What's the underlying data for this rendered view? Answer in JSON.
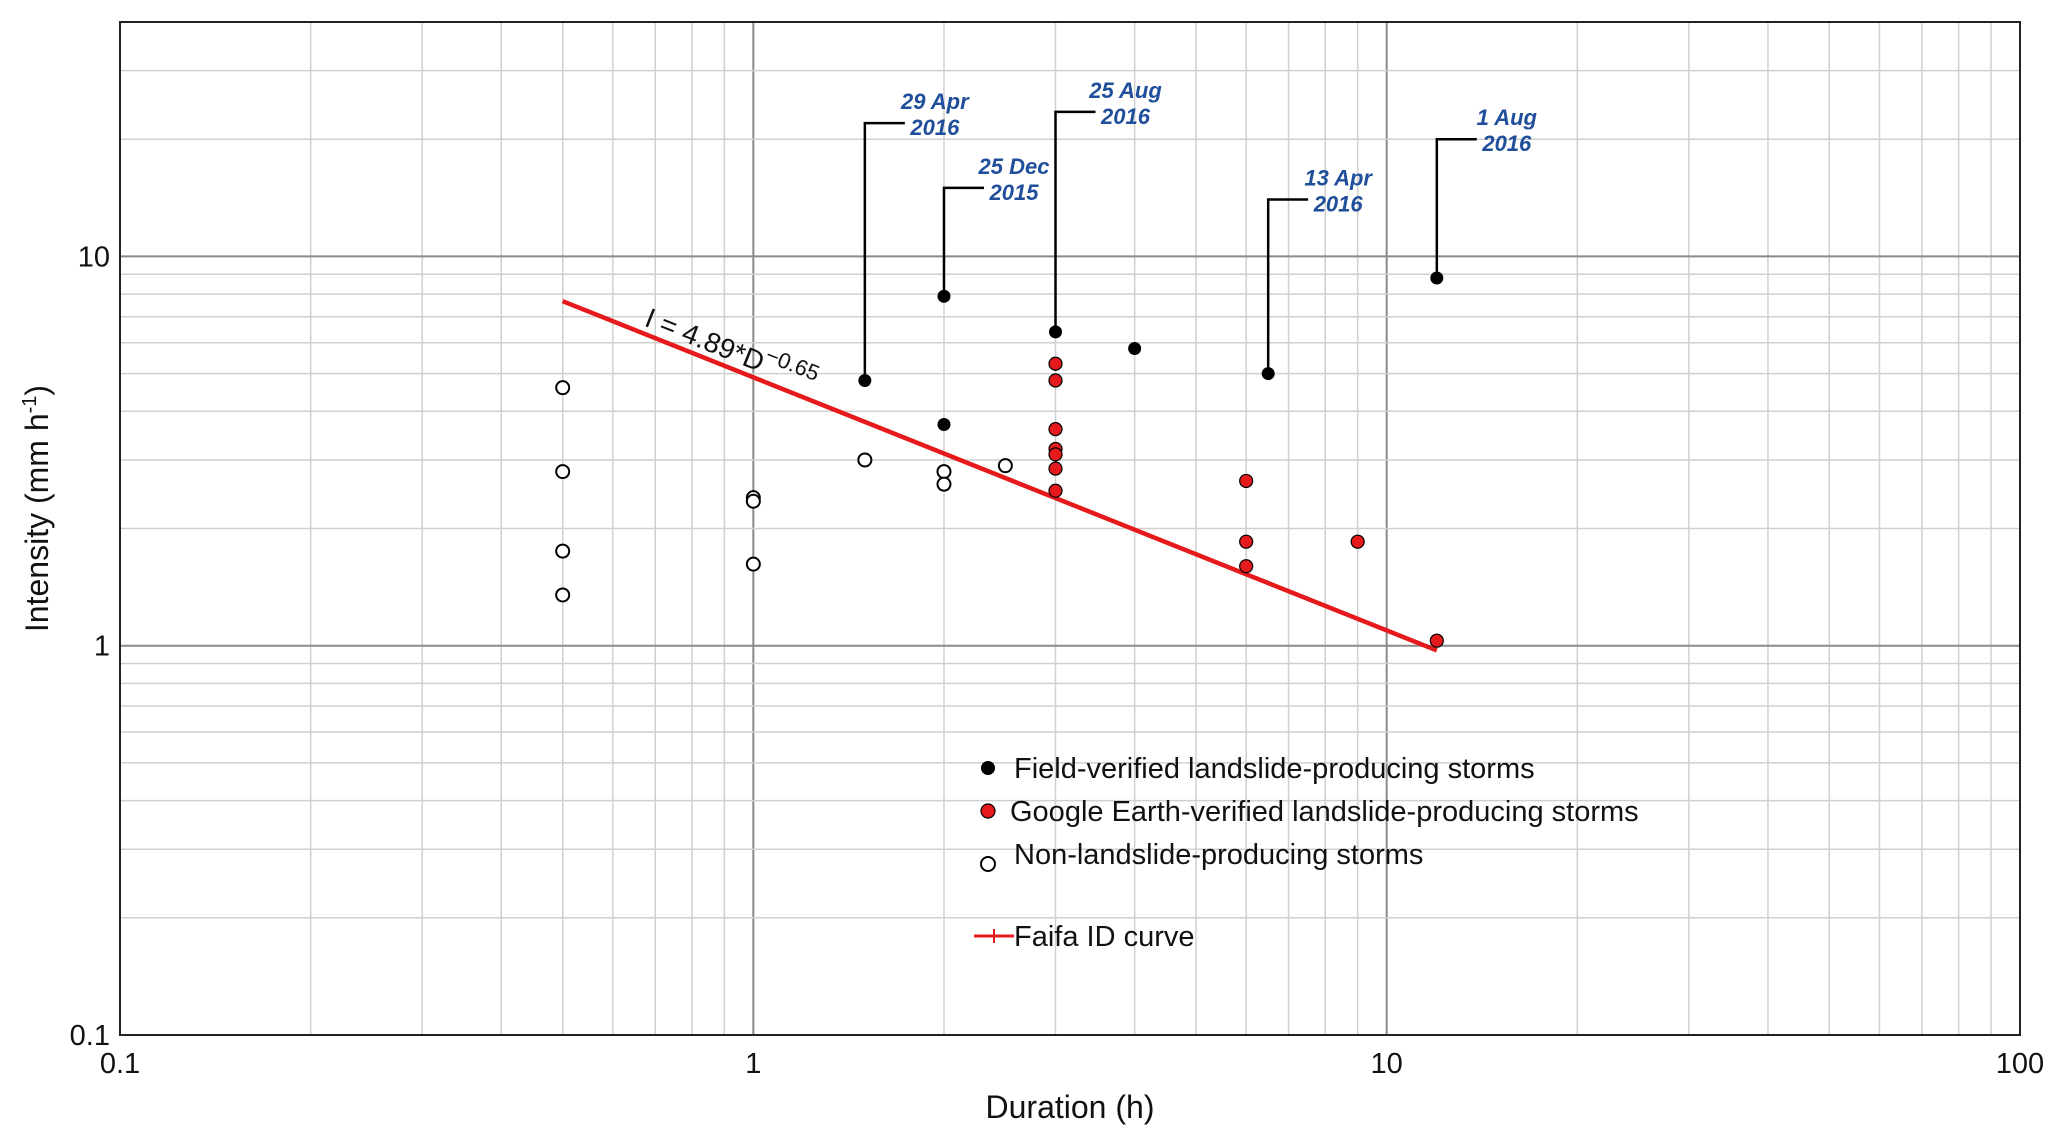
{
  "chart_data": {
    "type": "scatter",
    "title": "",
    "xlabel": "Duration (h)",
    "ylabel_main": "Intensity (mm h",
    "ylabel_sup": "-1",
    "ylabel_close": ")",
    "x_scale": "log",
    "y_scale": "log",
    "xlim": [
      0.1,
      100
    ],
    "ylim": [
      0.1,
      40
    ],
    "grid": true,
    "x_ticks": [
      {
        "value": 0.1,
        "label": "0.1"
      },
      {
        "value": 1,
        "label": "1"
      },
      {
        "value": 10,
        "label": "10"
      },
      {
        "value": 100,
        "label": "100"
      }
    ],
    "y_ticks": [
      {
        "value": 0.1,
        "label": "0.1"
      },
      {
        "value": 1,
        "label": "1"
      },
      {
        "value": 10,
        "label": "10"
      }
    ],
    "series": [
      {
        "name": "Field-verified landslide-producing storms",
        "marker": "filled-black",
        "color": "#000000",
        "points": [
          {
            "x": 1.5,
            "y": 4.8
          },
          {
            "x": 2,
            "y": 7.9
          },
          {
            "x": 2,
            "y": 3.7
          },
          {
            "x": 3,
            "y": 6.4
          },
          {
            "x": 4,
            "y": 5.8
          },
          {
            "x": 6.5,
            "y": 5.0
          },
          {
            "x": 12,
            "y": 8.8
          }
        ]
      },
      {
        "name": "Google Earth-verified landslide-producing storms",
        "marker": "filled-red",
        "color": "#e41a1c",
        "points": [
          {
            "x": 3,
            "y": 5.3
          },
          {
            "x": 3,
            "y": 4.8
          },
          {
            "x": 3,
            "y": 3.6
          },
          {
            "x": 3,
            "y": 3.2
          },
          {
            "x": 3,
            "y": 3.1
          },
          {
            "x": 3,
            "y": 2.85
          },
          {
            "x": 3,
            "y": 2.5
          },
          {
            "x": 6,
            "y": 2.65
          },
          {
            "x": 6,
            "y": 1.85
          },
          {
            "x": 6,
            "y": 1.6
          },
          {
            "x": 9,
            "y": 1.85
          },
          {
            "x": 12,
            "y": 1.03
          }
        ]
      },
      {
        "name": "Non-landslide-producing storms",
        "marker": "open-circle",
        "color": "#000000",
        "points": [
          {
            "x": 0.5,
            "y": 4.6
          },
          {
            "x": 0.5,
            "y": 2.8
          },
          {
            "x": 0.5,
            "y": 1.75
          },
          {
            "x": 0.5,
            "y": 1.35
          },
          {
            "x": 1,
            "y": 2.4
          },
          {
            "x": 1,
            "y": 2.35
          },
          {
            "x": 1,
            "y": 1.62
          },
          {
            "x": 1.5,
            "y": 3.0
          },
          {
            "x": 2,
            "y": 2.8
          },
          {
            "x": 2,
            "y": 2.6
          },
          {
            "x": 2.5,
            "y": 2.9
          }
        ]
      }
    ],
    "id_curve": {
      "name": "Faifa ID curve",
      "color": "#e41a1c",
      "equation_main": "I = 4.89*D",
      "equation_exp": "−0.65",
      "a": 4.89,
      "b": -0.65,
      "x_range": [
        0.5,
        12
      ]
    },
    "annotations": [
      {
        "line1": "29 Apr",
        "line2": "2016",
        "x": 1.5,
        "y": 4.8,
        "top_y": 22
      },
      {
        "line1": "25 Dec",
        "line2": "2015",
        "x": 2,
        "y": 7.9,
        "top_y": 15
      },
      {
        "line1": "25 Aug",
        "line2": "2016",
        "x": 3,
        "y": 6.4,
        "top_y": 23.5
      },
      {
        "line1": "13 Apr",
        "line2": "2016",
        "x": 6.5,
        "y": 5.0,
        "top_y": 14
      },
      {
        "line1": "1 Aug",
        "line2": "2016",
        "x": 12,
        "y": 8.8,
        "top_y": 20
      }
    ],
    "legend": {
      "placement": "lower-center",
      "entries": [
        "Field-verified landslide-producing storms",
        "Google Earth-verified landslide-producing storms",
        "Non-landslide-producing storms",
        "Faifa ID curve"
      ]
    }
  }
}
